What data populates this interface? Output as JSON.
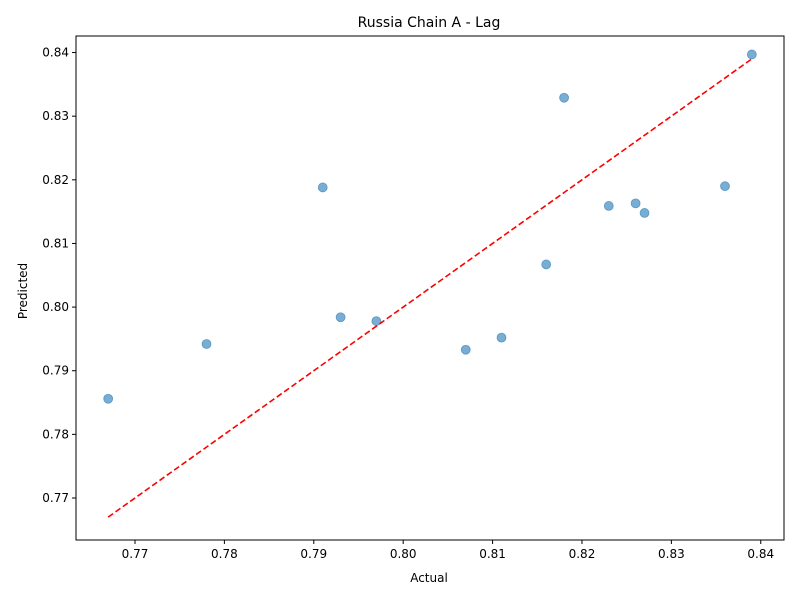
{
  "chart_data": {
    "type": "scatter",
    "title": "Russia Chain A - Lag",
    "xlabel": "Actual",
    "ylabel": "Predicted",
    "xlim": [
      0.7634,
      0.8426
    ],
    "ylim": [
      0.7634,
      0.8426
    ],
    "xticks": [
      0.77,
      0.78,
      0.79,
      0.8,
      0.81,
      0.82,
      0.83,
      0.84
    ],
    "yticks": [
      0.77,
      0.78,
      0.79,
      0.8,
      0.81,
      0.82,
      0.83,
      0.84
    ],
    "xtick_labels": [
      "0.77",
      "0.78",
      "0.79",
      "0.80",
      "0.81",
      "0.82",
      "0.83",
      "0.84"
    ],
    "ytick_labels": [
      "0.77",
      "0.78",
      "0.79",
      "0.80",
      "0.81",
      "0.82",
      "0.83",
      "0.84"
    ],
    "grid": false,
    "point_color": "#1f77b4",
    "reference_line_color": "#ff0000",
    "reference_line": {
      "x": [
        0.767,
        0.839
      ],
      "y": [
        0.767,
        0.839
      ]
    },
    "points": [
      {
        "x": 0.767,
        "y": 0.7856
      },
      {
        "x": 0.778,
        "y": 0.7942
      },
      {
        "x": 0.791,
        "y": 0.8188
      },
      {
        "x": 0.793,
        "y": 0.7984
      },
      {
        "x": 0.797,
        "y": 0.7978
      },
      {
        "x": 0.807,
        "y": 0.7933
      },
      {
        "x": 0.811,
        "y": 0.7952
      },
      {
        "x": 0.816,
        "y": 0.8067
      },
      {
        "x": 0.818,
        "y": 0.8329
      },
      {
        "x": 0.823,
        "y": 0.8159
      },
      {
        "x": 0.826,
        "y": 0.8163
      },
      {
        "x": 0.827,
        "y": 0.8148
      },
      {
        "x": 0.836,
        "y": 0.819
      },
      {
        "x": 0.839,
        "y": 0.8397
      }
    ]
  }
}
